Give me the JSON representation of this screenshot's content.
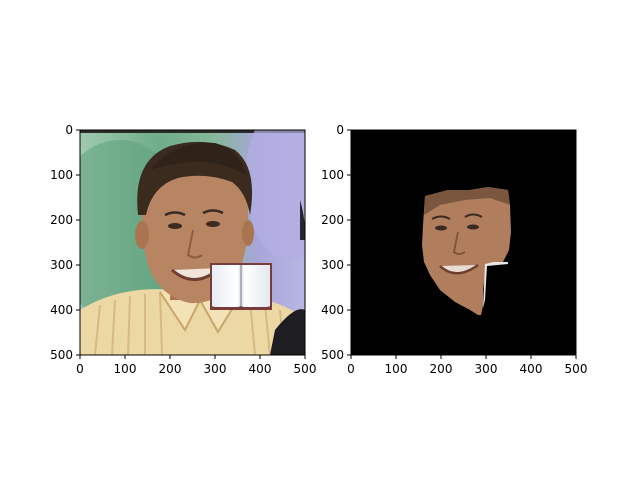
{
  "panels": [
    {
      "content": "photo of a smiling man in a yellow striped shirt with an open book pasted over his lower right face",
      "x_ticks": [
        "0",
        "100",
        "200",
        "300",
        "400",
        "500"
      ],
      "y_ticks": [
        "0",
        "100",
        "200",
        "300",
        "400",
        "500"
      ],
      "xlim": [
        0,
        500
      ],
      "ylim": [
        500,
        0
      ]
    },
    {
      "content": "segmentation mask: face region on black background with the occluded area cut out",
      "x_ticks": [
        "0",
        "100",
        "200",
        "300",
        "400",
        "500"
      ],
      "y_ticks": [
        "0",
        "100",
        "200",
        "300",
        "400",
        "500"
      ],
      "xlim": [
        0,
        500
      ],
      "ylim": [
        500,
        0
      ]
    }
  ],
  "colors": {
    "mask_background": "#000000",
    "axis": "#000000",
    "skin": "#b5825f",
    "hair": "#3a2a1e",
    "shirt": "#ecd7a0",
    "bg_green": "#7bb394",
    "bg_purple": "#a7a2d6"
  }
}
